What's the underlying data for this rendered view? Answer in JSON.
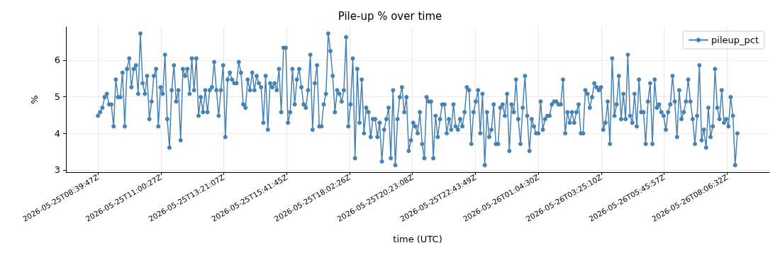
{
  "chart_data": {
    "type": "line",
    "title": "Pile-up % over time",
    "xlabel": "time (UTC)",
    "ylabel": "%",
    "x": [
      "2026-05-25T08:39:47",
      "2026-05-25T08:44:47",
      "2026-05-25T08:49:47",
      "2026-05-25T08:54:47",
      "2026-05-25T08:59:47",
      "2026-05-25T09:04:47",
      "2026-05-25T09:09:47",
      "2026-05-25T09:14:47",
      "2026-05-25T09:19:47",
      "2026-05-25T09:24:47",
      "2026-05-25T09:29:47",
      "2026-05-25T09:34:47",
      "2026-05-25T09:39:47",
      "2026-05-25T09:44:47",
      "2026-05-25T09:49:47",
      "2026-05-25T09:54:47",
      "2026-05-25T09:59:47",
      "2026-05-25T10:04:47",
      "2026-05-25T10:09:47",
      "2026-05-25T10:14:47",
      "2026-05-25T10:19:47",
      "2026-05-25T10:24:47",
      "2026-05-25T10:29:47",
      "2026-05-25T10:34:47",
      "2026-05-25T10:39:47",
      "2026-05-25T10:44:47",
      "2026-05-25T10:49:47",
      "2026-05-25T10:54:47",
      "2026-05-25T10:59:47",
      "2026-05-25T11:04:47",
      "2026-05-25T11:09:47",
      "2026-05-25T11:14:47",
      "2026-05-25T11:19:47",
      "2026-05-25T11:24:47",
      "2026-05-25T11:29:47",
      "2026-05-25T11:34:47",
      "2026-05-25T11:39:47",
      "2026-05-25T11:44:47",
      "2026-05-25T11:49:47",
      "2026-05-25T11:54:47",
      "2026-05-25T11:59:47",
      "2026-05-25T12:04:47",
      "2026-05-25T12:09:47",
      "2026-05-25T12:14:47",
      "2026-05-25T12:19:47",
      "2026-05-25T12:24:47",
      "2026-05-25T12:29:47",
      "2026-05-25T12:34:47",
      "2026-05-25T12:39:47",
      "2026-05-25T12:44:47",
      "2026-05-25T12:49:47",
      "2026-05-25T12:54:47",
      "2026-05-25T12:59:47",
      "2026-05-25T13:04:47",
      "2026-05-25T13:09:47",
      "2026-05-25T13:14:47",
      "2026-05-25T13:19:47",
      "2026-05-25T13:24:47",
      "2026-05-25T13:29:47",
      "2026-05-25T13:34:47",
      "2026-05-25T13:39:47",
      "2026-05-25T13:44:47",
      "2026-05-25T13:49:47",
      "2026-05-25T13:54:47",
      "2026-05-25T13:59:47",
      "2026-05-25T14:04:47",
      "2026-05-25T14:09:47",
      "2026-05-25T14:14:47",
      "2026-05-25T14:19:47",
      "2026-05-25T14:24:47",
      "2026-05-25T14:29:47",
      "2026-05-25T14:34:47",
      "2026-05-25T14:39:47",
      "2026-05-25T14:44:47",
      "2026-05-25T14:49:47",
      "2026-05-25T14:54:47",
      "2026-05-25T14:59:47",
      "2026-05-25T15:04:47",
      "2026-05-25T15:09:47",
      "2026-05-25T15:14:47",
      "2026-05-25T15:19:47",
      "2026-05-25T15:24:47",
      "2026-05-25T15:29:47",
      "2026-05-25T15:34:47",
      "2026-05-25T15:39:47",
      "2026-05-25T15:44:47",
      "2026-05-25T15:49:47",
      "2026-05-25T15:54:47",
      "2026-05-25T15:59:47",
      "2026-05-25T16:04:47",
      "2026-05-25T16:09:47",
      "2026-05-25T16:14:47",
      "2026-05-25T16:19:47",
      "2026-05-25T16:24:47",
      "2026-05-25T16:29:47",
      "2026-05-25T16:34:47",
      "2026-05-25T16:39:47",
      "2026-05-25T16:44:47",
      "2026-05-25T16:49:47",
      "2026-05-25T16:54:47",
      "2026-05-25T16:59:47",
      "2026-05-25T17:04:47",
      "2026-05-25T17:09:47",
      "2026-05-25T17:14:47",
      "2026-05-25T17:19:47",
      "2026-05-25T17:24:47",
      "2026-05-25T17:29:47",
      "2026-05-25T17:34:47",
      "2026-05-25T17:39:47",
      "2026-05-25T17:44:47",
      "2026-05-25T17:49:47",
      "2026-05-25T17:54:47",
      "2026-05-25T17:59:47",
      "2026-05-25T18:04:47",
      "2026-05-25T18:09:47",
      "2026-05-25T18:14:47",
      "2026-05-25T18:19:47",
      "2026-05-25T18:24:47",
      "2026-05-25T18:29:47",
      "2026-05-25T18:34:47",
      "2026-05-25T18:39:47",
      "2026-05-25T18:44:47",
      "2026-05-25T18:49:47",
      "2026-05-25T18:54:47",
      "2026-05-25T18:59:47",
      "2026-05-25T19:04:47",
      "2026-05-25T19:09:47",
      "2026-05-25T19:14:47",
      "2026-05-25T19:19:47",
      "2026-05-25T19:24:47",
      "2026-05-25T19:29:47",
      "2026-05-25T19:34:47",
      "2026-05-25T19:39:47",
      "2026-05-25T19:44:47",
      "2026-05-25T19:49:47",
      "2026-05-25T19:54:47",
      "2026-05-25T19:59:47",
      "2026-05-25T20:04:47",
      "2026-05-25T20:09:47",
      "2026-05-25T20:14:47",
      "2026-05-25T20:19:47",
      "2026-05-25T20:24:47",
      "2026-05-25T20:29:47",
      "2026-05-25T20:34:47",
      "2026-05-25T20:39:47",
      "2026-05-25T20:44:47",
      "2026-05-25T20:49:47",
      "2026-05-25T20:54:47",
      "2026-05-25T20:59:47",
      "2026-05-25T21:04:47",
      "2026-05-25T21:09:47",
      "2026-05-25T21:14:47",
      "2026-05-25T21:19:47",
      "2026-05-25T21:24:47",
      "2026-05-25T21:29:47",
      "2026-05-25T21:34:47",
      "2026-05-25T21:39:47",
      "2026-05-25T21:44:47",
      "2026-05-25T21:49:47",
      "2026-05-25T21:54:47",
      "2026-05-25T21:59:47",
      "2026-05-25T22:04:47",
      "2026-05-25T22:09:47",
      "2026-05-25T22:14:47",
      "2026-05-25T22:19:47",
      "2026-05-25T22:24:47",
      "2026-05-25T22:29:47",
      "2026-05-25T22:34:47",
      "2026-05-25T22:39:47",
      "2026-05-25T22:44:47",
      "2026-05-25T22:49:47",
      "2026-05-25T22:54:47",
      "2026-05-25T22:59:47",
      "2026-05-25T23:04:47",
      "2026-05-25T23:09:47",
      "2026-05-25T23:14:47",
      "2026-05-25T23:19:47",
      "2026-05-25T23:24:47",
      "2026-05-25T23:29:47",
      "2026-05-25T23:34:47",
      "2026-05-25T23:39:47",
      "2026-05-25T23:44:47",
      "2026-05-25T23:49:47",
      "2026-05-25T23:54:47",
      "2026-05-25T23:59:47",
      "2026-05-26T00:04:47",
      "2026-05-26T00:09:47",
      "2026-05-26T00:14:47",
      "2026-05-26T00:19:47",
      "2026-05-26T00:24:47",
      "2026-05-26T00:29:47",
      "2026-05-26T00:34:47",
      "2026-05-26T00:39:47",
      "2026-05-26T00:44:47",
      "2026-05-26T00:49:47",
      "2026-05-26T00:54:47",
      "2026-05-26T00:59:47",
      "2026-05-26T01:04:47",
      "2026-05-26T01:09:47",
      "2026-05-26T01:14:47",
      "2026-05-26T01:19:47",
      "2026-05-26T01:24:47",
      "2026-05-26T01:29:47",
      "2026-05-26T01:34:47",
      "2026-05-26T01:39:47",
      "2026-05-26T01:44:47",
      "2026-05-26T01:49:47",
      "2026-05-26T01:54:47",
      "2026-05-26T01:59:47",
      "2026-05-26T02:04:47",
      "2026-05-26T02:09:47",
      "2026-05-26T02:14:47",
      "2026-05-26T02:19:47",
      "2026-05-26T02:24:47",
      "2026-05-26T02:29:47",
      "2026-05-26T02:34:47",
      "2026-05-26T02:39:47",
      "2026-05-26T02:44:47",
      "2026-05-26T02:49:47",
      "2026-05-26T02:54:47",
      "2026-05-26T02:59:47",
      "2026-05-26T03:04:47",
      "2026-05-26T03:09:47",
      "2026-05-26T03:14:47",
      "2026-05-26T03:19:47",
      "2026-05-26T03:24:47",
      "2026-05-26T03:29:47",
      "2026-05-26T03:34:47",
      "2026-05-26T03:39:47",
      "2026-05-26T03:44:47",
      "2026-05-26T03:49:47",
      "2026-05-26T03:54:47",
      "2026-05-26T03:59:47",
      "2026-05-26T04:04:47",
      "2026-05-26T04:09:47",
      "2026-05-26T04:14:47",
      "2026-05-26T04:19:47",
      "2026-05-26T04:24:47",
      "2026-05-26T04:29:47",
      "2026-05-26T04:34:47",
      "2026-05-26T04:39:47",
      "2026-05-26T04:44:47",
      "2026-05-26T04:49:47",
      "2026-05-26T04:54:47",
      "2026-05-26T04:59:47",
      "2026-05-26T05:04:47",
      "2026-05-26T05:09:47",
      "2026-05-26T05:14:47",
      "2026-05-26T05:19:47",
      "2026-05-26T05:24:47",
      "2026-05-26T05:29:47",
      "2026-05-26T05:34:47",
      "2026-05-26T05:39:47",
      "2026-05-26T05:44:47",
      "2026-05-26T05:49:47",
      "2026-05-26T05:54:47",
      "2026-05-26T05:59:47",
      "2026-05-26T06:04:47",
      "2026-05-26T06:09:47",
      "2026-05-26T06:14:47",
      "2026-05-26T06:19:47",
      "2026-05-26T06:24:47",
      "2026-05-26T06:29:47",
      "2026-05-26T06:34:47",
      "2026-05-26T06:39:47",
      "2026-05-26T06:44:47",
      "2026-05-26T06:49:47",
      "2026-05-26T06:54:47",
      "2026-05-26T06:59:47",
      "2026-05-26T07:04:47",
      "2026-05-26T07:09:47",
      "2026-05-26T07:14:47",
      "2026-05-26T07:19:47",
      "2026-05-26T07:24:47",
      "2026-05-26T07:29:47",
      "2026-05-26T07:34:47",
      "2026-05-26T07:39:47",
      "2026-05-26T07:44:47",
      "2026-05-26T07:49:47",
      "2026-05-26T07:54:47",
      "2026-05-26T07:59:47",
      "2026-05-26T08:04:47",
      "2026-05-26T08:09:47",
      "2026-05-26T08:14:47",
      "2026-05-26T08:19:47",
      "2026-05-26T08:24:47",
      "2026-05-26T08:29:47"
    ],
    "series": [
      {
        "name": "pileup_pct",
        "color": "#4682b4",
        "values": [
          4.48,
          4.58,
          4.7,
          4.99,
          5.08,
          4.79,
          4.79,
          4.19,
          5.47,
          4.99,
          4.99,
          5.66,
          4.19,
          5.76,
          6.05,
          5.26,
          5.76,
          5.86,
          5.08,
          6.73,
          5.37,
          5.08,
          5.57,
          4.39,
          4.87,
          5.57,
          5.76,
          4.19,
          5.26,
          5.08,
          6.15,
          4.39,
          3.61,
          5.18,
          5.86,
          4.87,
          5.18,
          3.81,
          5.76,
          5.57,
          5.76,
          5.08,
          6.05,
          5.18,
          6.05,
          4.48,
          4.99,
          4.58,
          5.18,
          4.58,
          5.18,
          5.26,
          5.95,
          5.18,
          4.48,
          5.18,
          5.86,
          3.9,
          5.47,
          5.66,
          5.47,
          5.37,
          5.37,
          5.95,
          5.66,
          4.79,
          4.7,
          5.47,
          5.18,
          5.66,
          5.18,
          5.57,
          5.37,
          5.26,
          4.29,
          5.57,
          4.1,
          5.37,
          5.26,
          5.37,
          5.18,
          5.76,
          4.58,
          6.34,
          6.34,
          4.29,
          4.58,
          5.76,
          4.79,
          5.47,
          5.76,
          5.26,
          4.79,
          4.7,
          5.18,
          6.15,
          4.1,
          5.37,
          5.86,
          4.19,
          4.19,
          4.79,
          5.08,
          6.73,
          6.25,
          5.57,
          4.58,
          5.18,
          5.08,
          4.87,
          5.18,
          6.63,
          4.19,
          4.79,
          6.05,
          3.32,
          5.76,
          4.29,
          5.47,
          4.0,
          4.7,
          4.58,
          3.9,
          4.39,
          4.39,
          3.9,
          4.29,
          3.23,
          4.1,
          4.39,
          4.7,
          3.32,
          5.18,
          3.13,
          4.39,
          4.99,
          5.26,
          4.58,
          4.99,
          3.52,
          3.81,
          4.29,
          4.19,
          4.0,
          4.58,
          3.71,
          3.32,
          4.99,
          4.87,
          4.87,
          3.32,
          4.48,
          3.9,
          4.39,
          4.79,
          4.79,
          4.0,
          4.39,
          4.1,
          4.79,
          4.19,
          4.1,
          4.39,
          4.19,
          4.58,
          5.26,
          5.18,
          3.71,
          4.58,
          4.87,
          5.18,
          4.0,
          5.08,
          3.13,
          4.58,
          3.9,
          4.1,
          4.79,
          3.71,
          3.71,
          4.7,
          4.79,
          4.48,
          5.08,
          3.52,
          4.79,
          4.58,
          5.47,
          4.39,
          3.71,
          4.7,
          5.57,
          4.48,
          3.52,
          4.39,
          4.19,
          4.0,
          4.0,
          4.87,
          4.1,
          4.39,
          4.48,
          4.48,
          4.79,
          4.87,
          4.87,
          4.79,
          4.79,
          5.47,
          4.0,
          4.58,
          4.29,
          4.58,
          4.29,
          4.58,
          4.79,
          4.0,
          4.0,
          5.18,
          5.08,
          4.7,
          4.99,
          5.37,
          5.26,
          5.18,
          5.26,
          4.1,
          4.29,
          4.87,
          3.71,
          6.05,
          4.48,
          4.79,
          5.57,
          4.39,
          5.08,
          4.39,
          6.15,
          4.48,
          4.29,
          5.08,
          4.19,
          5.47,
          4.58,
          4.58,
          3.71,
          4.87,
          5.37,
          3.71,
          5.47,
          4.7,
          4.79,
          4.58,
          4.48,
          4.1,
          4.58,
          4.79,
          5.57,
          4.87,
          3.9,
          5.18,
          4.39,
          4.58,
          4.87,
          5.47,
          4.87,
          4.39,
          3.71,
          4.48,
          5.86,
          3.81,
          4.1,
          3.61,
          4.7,
          3.9,
          4.19,
          5.76,
          4.7,
          4.39,
          5.18,
          4.29,
          4.39,
          4.19,
          4.99,
          4.48,
          3.13,
          4.0
        ]
      }
    ],
    "xlim": [
      "2026-05-25T07:28:17",
      "2026-05-26T09:41:17"
    ],
    "xticks": [
      {
        "value": "2026-05-25T08:39:47",
        "label": "2026-05-25T08:39:47Z"
      },
      {
        "value": "2026-05-25T11:00:27",
        "label": "2026-05-25T11:00:27Z"
      },
      {
        "value": "2026-05-25T13:21:07",
        "label": "2026-05-25T13:21:07Z"
      },
      {
        "value": "2026-05-25T15:41:45",
        "label": "2026-05-25T15:41:45Z"
      },
      {
        "value": "2026-05-25T18:02:26",
        "label": "2026-05-25T18:02:26Z"
      },
      {
        "value": "2026-05-25T20:23:08",
        "label": "2026-05-25T20:23:08Z"
      },
      {
        "value": "2026-05-25T22:43:49",
        "label": "2026-05-25T22:43:49Z"
      },
      {
        "value": "2026-05-26T01:04:30",
        "label": "2026-05-26T01:04:30Z"
      },
      {
        "value": "2026-05-26T03:25:10",
        "label": "2026-05-26T03:25:10Z"
      },
      {
        "value": "2026-05-26T05:45:57",
        "label": "2026-05-26T05:45:57Z"
      },
      {
        "value": "2026-05-26T08:06:32",
        "label": "2026-05-26T08:06:32Z"
      }
    ],
    "ylim": [
      2.94,
      6.91
    ],
    "yticks": [
      3,
      4,
      5,
      6
    ],
    "grid": true,
    "legend": "top right",
    "marker": "circle",
    "line_style": "solid"
  }
}
